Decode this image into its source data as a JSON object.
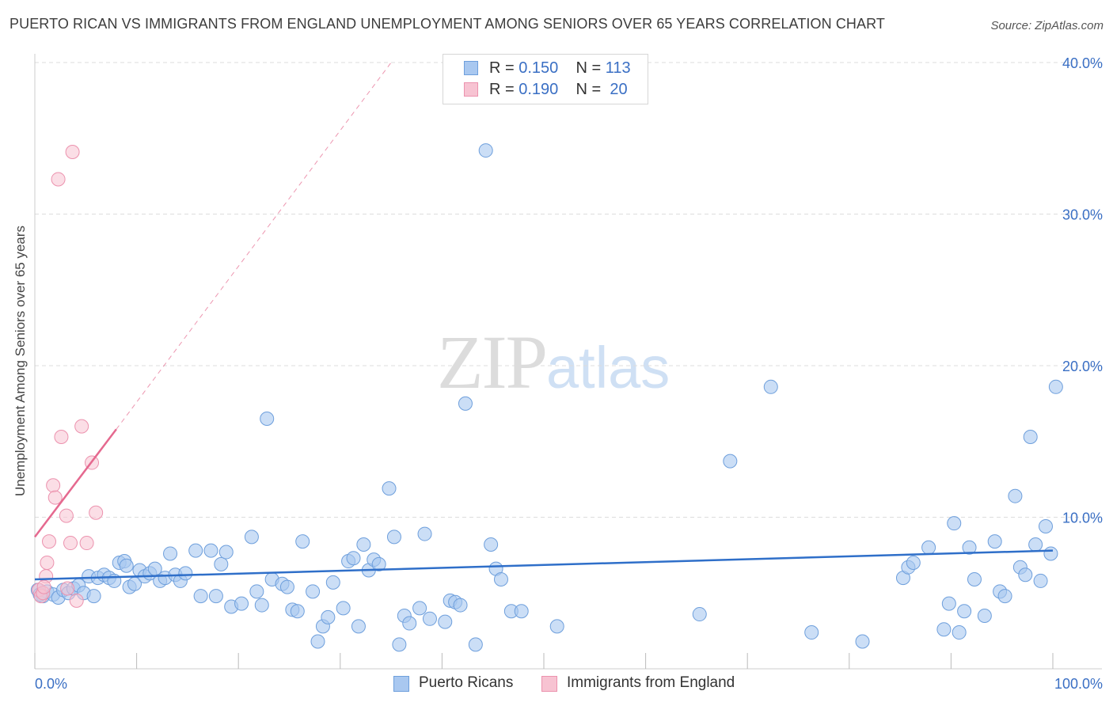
{
  "header": {
    "title": "PUERTO RICAN VS IMMIGRANTS FROM ENGLAND UNEMPLOYMENT AMONG SENIORS OVER 65 YEARS CORRELATION CHART",
    "source": "Source: ZipAtlas.com"
  },
  "watermark": {
    "zip": "ZIP",
    "atlas": "atlas"
  },
  "legend_top": [
    {
      "r_label": "R =",
      "r_value": "0.150",
      "n_label": "N =",
      "n_value": "113",
      "color": "#7aa7e0"
    },
    {
      "r_label": "R =",
      "r_value": "0.190",
      "n_label": "N =",
      "n_value": "20",
      "color": "#f0a0b8"
    }
  ],
  "legend_bottom": {
    "series_a": "Puerto Ricans",
    "series_b": "Immigrants from England"
  },
  "colors": {
    "blue_fill": "#a9c8f0",
    "blue_stroke": "#6e9fdc",
    "blue_line": "#2f6fc9",
    "pink_fill": "#f7c3d2",
    "pink_stroke": "#ec92ae",
    "pink_line": "#e5698f",
    "grid": "#dddddd",
    "tick_label": "#3a6fc4"
  },
  "chart_data": {
    "type": "scatter",
    "title": "PUERTO RICAN VS IMMIGRANTS FROM ENGLAND UNEMPLOYMENT AMONG SENIORS OVER 65 YEARS CORRELATION CHART",
    "xlabel": "",
    "ylabel": "Unemployment Among Seniors over 65 years",
    "xlim": [
      0,
      100
    ],
    "ylim": [
      0,
      40
    ],
    "x_tick_labels": [
      "0.0%",
      "100.0%"
    ],
    "y_ticks": [
      10,
      20,
      30,
      40
    ],
    "y_tick_labels": [
      "10.0%",
      "20.0%",
      "30.0%",
      "40.0%"
    ],
    "grid": true,
    "series": [
      {
        "name": "Puerto Ricans",
        "r": 0.15,
        "n": 113,
        "trend": {
          "x": [
            0,
            100
          ],
          "y": [
            5.9,
            7.8
          ]
        },
        "points": [
          [
            0.3,
            5.2
          ],
          [
            0.8,
            4.8
          ],
          [
            1.2,
            5.1
          ],
          [
            1.8,
            4.9
          ],
          [
            2.3,
            4.7
          ],
          [
            2.8,
            5.2
          ],
          [
            3.3,
            5.0
          ],
          [
            3.8,
            5.3
          ],
          [
            4.3,
            5.5
          ],
          [
            4.8,
            5.0
          ],
          [
            5.3,
            6.1
          ],
          [
            5.8,
            4.8
          ],
          [
            6.2,
            6.0
          ],
          [
            6.8,
            6.2
          ],
          [
            7.3,
            6.0
          ],
          [
            7.8,
            5.8
          ],
          [
            8.3,
            7.0
          ],
          [
            8.8,
            7.1
          ],
          [
            9.0,
            6.8
          ],
          [
            9.3,
            5.4
          ],
          [
            9.8,
            5.6
          ],
          [
            10.3,
            6.5
          ],
          [
            10.8,
            6.1
          ],
          [
            11.3,
            6.3
          ],
          [
            11.8,
            6.6
          ],
          [
            12.3,
            5.8
          ],
          [
            12.8,
            6.0
          ],
          [
            13.3,
            7.6
          ],
          [
            13.8,
            6.2
          ],
          [
            14.3,
            5.8
          ],
          [
            14.8,
            6.3
          ],
          [
            15.8,
            7.8
          ],
          [
            16.3,
            4.8
          ],
          [
            17.3,
            7.8
          ],
          [
            17.8,
            4.8
          ],
          [
            18.3,
            6.9
          ],
          [
            18.8,
            7.7
          ],
          [
            19.3,
            4.1
          ],
          [
            20.3,
            4.3
          ],
          [
            21.3,
            8.7
          ],
          [
            21.8,
            5.1
          ],
          [
            22.8,
            16.5
          ],
          [
            22.3,
            4.2
          ],
          [
            23.3,
            5.9
          ],
          [
            24.3,
            5.6
          ],
          [
            24.8,
            5.4
          ],
          [
            25.3,
            3.9
          ],
          [
            25.8,
            3.8
          ],
          [
            26.3,
            8.4
          ],
          [
            27.3,
            5.1
          ],
          [
            27.8,
            1.8
          ],
          [
            28.3,
            2.8
          ],
          [
            28.8,
            3.4
          ],
          [
            29.3,
            5.7
          ],
          [
            30.3,
            4.0
          ],
          [
            30.8,
            7.1
          ],
          [
            31.3,
            7.3
          ],
          [
            31.8,
            2.8
          ],
          [
            32.3,
            8.2
          ],
          [
            32.8,
            6.5
          ],
          [
            33.3,
            7.2
          ],
          [
            33.8,
            6.9
          ],
          [
            34.8,
            11.9
          ],
          [
            35.3,
            8.7
          ],
          [
            35.8,
            1.6
          ],
          [
            36.3,
            3.5
          ],
          [
            36.8,
            3.0
          ],
          [
            37.8,
            4.0
          ],
          [
            38.3,
            8.9
          ],
          [
            38.8,
            3.3
          ],
          [
            40.3,
            3.1
          ],
          [
            40.8,
            4.5
          ],
          [
            41.3,
            4.4
          ],
          [
            41.8,
            4.2
          ],
          [
            42.3,
            17.5
          ],
          [
            43.3,
            1.6
          ],
          [
            44.3,
            34.2
          ],
          [
            44.8,
            8.2
          ],
          [
            45.3,
            6.6
          ],
          [
            45.8,
            5.9
          ],
          [
            46.8,
            3.8
          ],
          [
            47.8,
            3.8
          ],
          [
            51.3,
            2.8
          ],
          [
            65.3,
            3.6
          ],
          [
            68.3,
            13.7
          ],
          [
            72.3,
            18.6
          ],
          [
            76.3,
            2.4
          ],
          [
            81.3,
            1.8
          ],
          [
            85.3,
            6.0
          ],
          [
            85.8,
            6.7
          ],
          [
            86.3,
            7.0
          ],
          [
            87.8,
            8.0
          ],
          [
            89.3,
            2.6
          ],
          [
            89.8,
            4.3
          ],
          [
            90.3,
            9.6
          ],
          [
            90.8,
            2.4
          ],
          [
            91.3,
            3.8
          ],
          [
            91.8,
            8.0
          ],
          [
            92.3,
            5.9
          ],
          [
            93.3,
            3.5
          ],
          [
            94.3,
            8.4
          ],
          [
            94.8,
            5.1
          ],
          [
            95.3,
            4.8
          ],
          [
            96.3,
            11.4
          ],
          [
            96.8,
            6.7
          ],
          [
            97.3,
            6.2
          ],
          [
            97.8,
            15.3
          ],
          [
            98.3,
            8.2
          ],
          [
            98.8,
            5.8
          ],
          [
            99.3,
            9.4
          ],
          [
            99.8,
            7.6
          ],
          [
            100.3,
            18.6
          ],
          [
            0.5,
            4.9
          ]
        ]
      },
      {
        "name": "Immigrants from England",
        "r": 0.19,
        "n": 20,
        "trend": {
          "x": [
            0,
            8
          ],
          "y": [
            8.7,
            15.8
          ]
        },
        "trend_extended": {
          "x": [
            8,
            35
          ],
          "y": [
            15.8,
            40
          ]
        },
        "points": [
          [
            0.4,
            5.2
          ],
          [
            0.6,
            4.8
          ],
          [
            0.8,
            5.0
          ],
          [
            1.1,
            6.1
          ],
          [
            1.2,
            7.0
          ],
          [
            1.4,
            8.4
          ],
          [
            1.8,
            12.1
          ],
          [
            2.0,
            11.3
          ],
          [
            2.3,
            32.3
          ],
          [
            2.6,
            15.3
          ],
          [
            3.1,
            10.1
          ],
          [
            3.5,
            8.3
          ],
          [
            3.7,
            34.1
          ],
          [
            4.1,
            4.5
          ],
          [
            4.6,
            16.0
          ],
          [
            5.1,
            8.3
          ],
          [
            5.6,
            13.6
          ],
          [
            6.0,
            10.3
          ],
          [
            3.2,
            5.3
          ],
          [
            0.9,
            5.4
          ]
        ]
      }
    ]
  }
}
